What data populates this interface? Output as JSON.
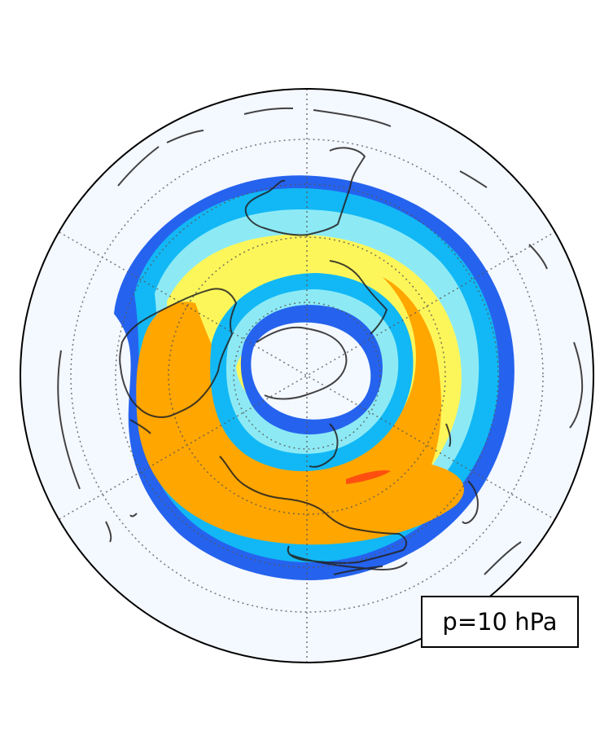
{
  "figure": {
    "pressure_label": "p=10 hPa",
    "colors": {
      "background": "#f4f8ff",
      "blue": "#2563ee",
      "light_blue": "#12b8f5",
      "cyan": "#8deaf5",
      "yellow": "#fdf65a",
      "orange": "#ffa600",
      "red": "#ff4f10",
      "coastline": "#222222",
      "gridline": "#555555"
    }
  }
}
